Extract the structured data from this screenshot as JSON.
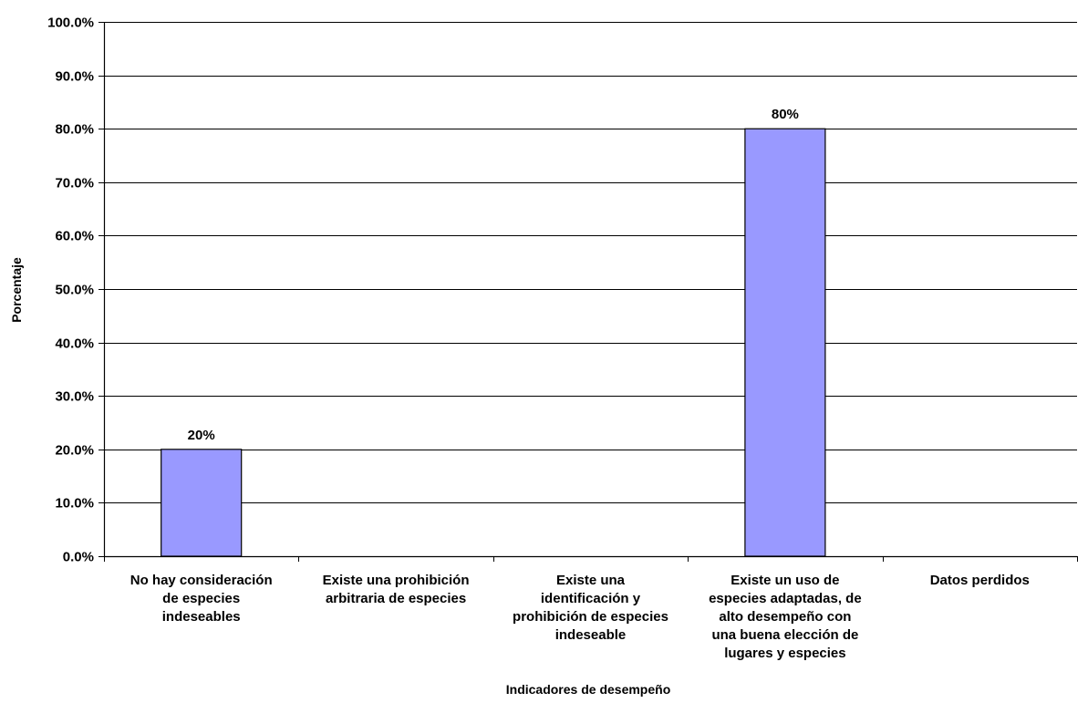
{
  "chart_data": {
    "type": "bar",
    "categories": [
      [
        "No hay consideración",
        "de especies",
        "indeseables"
      ],
      [
        "Existe una prohibición",
        "arbitraria de especies"
      ],
      [
        "Existe una",
        "identificación y",
        "prohibición de especies",
        "indeseable"
      ],
      [
        "Existe un uso de",
        "especies adaptadas, de",
        "alto desempeño con",
        "una buena elección de",
        "lugares y especies"
      ],
      [
        "Datos perdidos"
      ]
    ],
    "values": [
      20,
      0,
      0,
      80,
      0
    ],
    "data_labels": [
      "20%",
      "",
      "",
      "80%",
      ""
    ],
    "xlabel": "Indicadores de desempeño",
    "ylabel": "Porcentaje",
    "ylim": [
      0,
      100
    ],
    "yticks": [
      "0.0%",
      "10.0%",
      "20.0%",
      "30.0%",
      "40.0%",
      "50.0%",
      "60.0%",
      "70.0%",
      "80.0%",
      "90.0%",
      "100.0%"
    ],
    "grid": true,
    "bar_color": "#9999ff",
    "bar_outline_color": "#000000",
    "gridline_color": "#000000"
  }
}
